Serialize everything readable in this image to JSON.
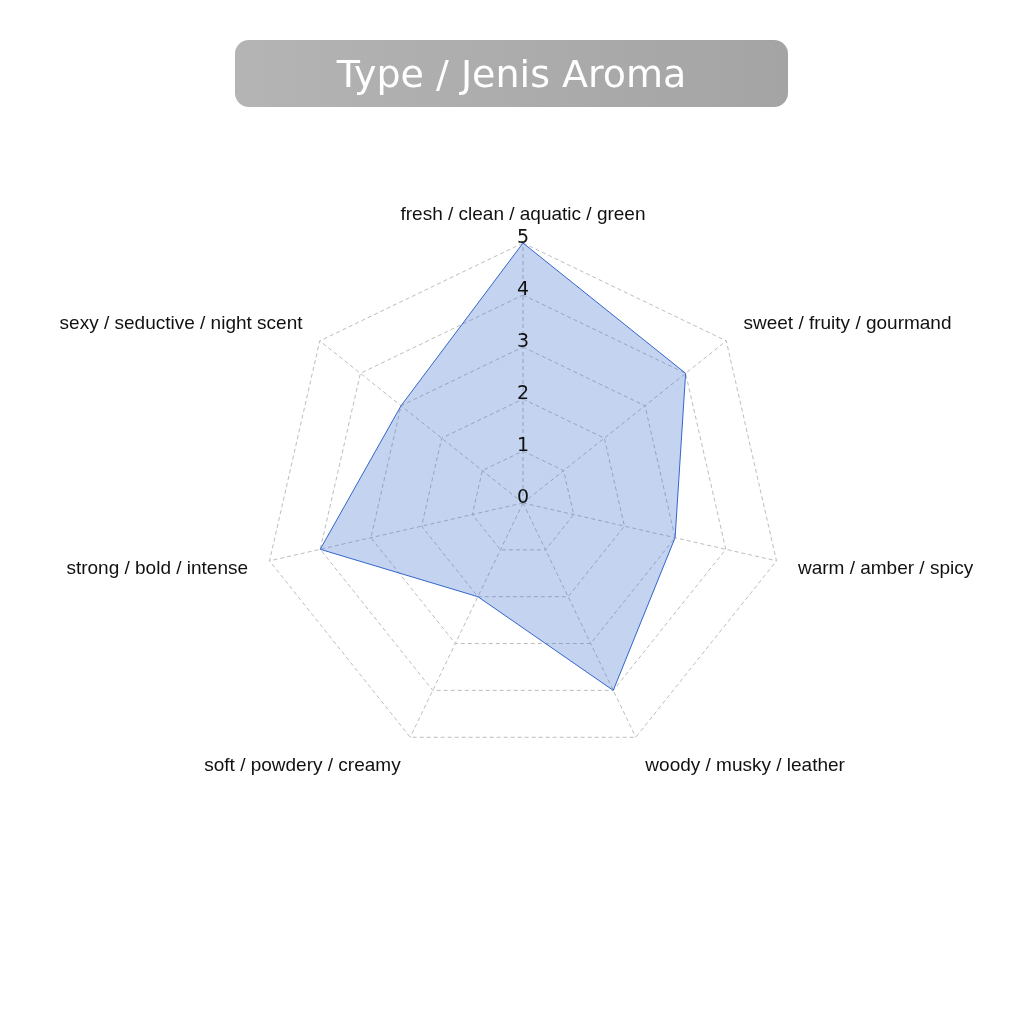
{
  "chart_data": {
    "type": "radar",
    "title": "Type / Jenis Aroma",
    "categories": [
      "fresh / clean / aquatic / green",
      "sweet / fruity / gourmand",
      "warm / amber / spicy",
      "woody / musky / leather",
      "soft / powdery / creamy",
      "strong / bold / intense",
      "sexy / seductive / night scent"
    ],
    "series": [
      {
        "color": "#3366cc",
        "values": [
          5,
          4,
          3,
          4,
          2,
          4,
          3
        ]
      }
    ],
    "ylim": [
      0,
      5
    ],
    "yticks": [
      0,
      1,
      2,
      3,
      4,
      5
    ],
    "grid": true
  }
}
